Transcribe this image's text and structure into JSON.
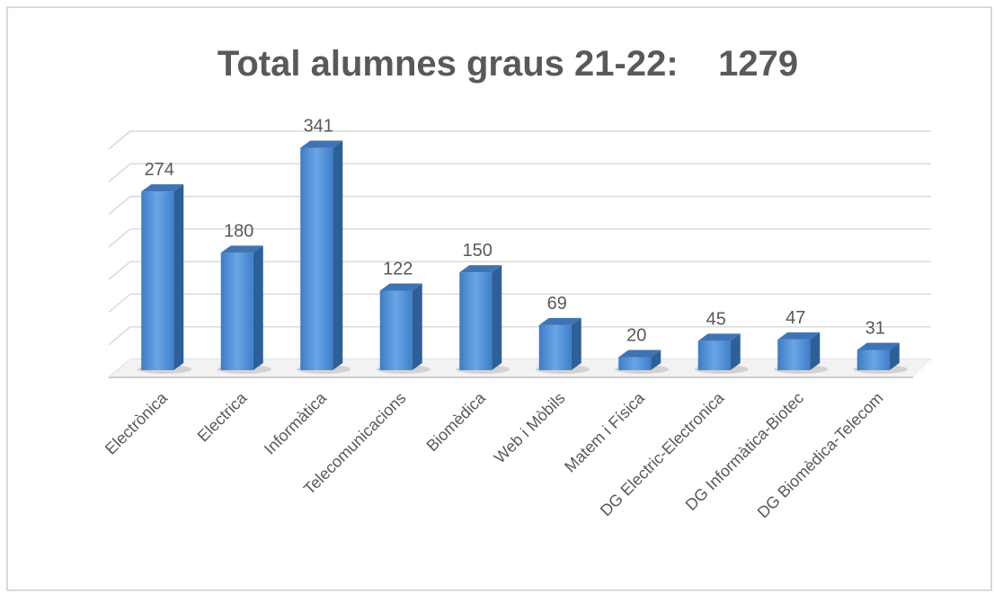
{
  "chart_data": {
    "type": "bar3d",
    "title": "Total alumnes graus 21-22:    1279",
    "categories": [
      "Electrònica",
      "Electrica",
      "Informàtica",
      "Telecomunicacions",
      "Biomèdica",
      "Web i Mòbils",
      "Matem i Física",
      "DG Electric-Electronica",
      "DG Informàtica-Biotec",
      "DG Biomèdica-Telecom"
    ],
    "values": [
      274,
      180,
      341,
      122,
      150,
      69,
      20,
      45,
      47,
      31
    ],
    "color": "#4a8ad4",
    "ylim": [
      0,
      350
    ],
    "yticks": [
      0,
      50,
      100,
      150,
      200,
      250,
      300,
      350
    ],
    "grid": true
  }
}
